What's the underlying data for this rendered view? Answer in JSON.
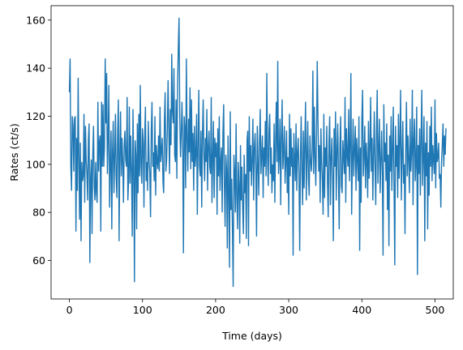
{
  "chart_data": {
    "type": "line",
    "title": "",
    "xlabel": "Time (days)",
    "ylabel": "Rates (ct/s)",
    "xlim": [
      -25,
      525
    ],
    "ylim": [
      44,
      166
    ],
    "xticks": [
      0,
      100,
      200,
      300,
      400,
      500
    ],
    "yticks": [
      60,
      80,
      100,
      120,
      140,
      160
    ],
    "grid": false,
    "color": "#1f77b4",
    "series": [
      {
        "x_start": 0,
        "x_step": 1,
        "values": [
          130,
          144,
          99,
          89,
          120,
          116,
          97,
          119,
          120,
          72,
          111,
          89,
          136,
          103,
          77,
          109,
          68,
          101,
          93,
          95,
          121,
          84,
          116,
          102,
          96,
          85,
          110,
          117,
          59,
          94,
          102,
          71,
          104,
          116,
          91,
          85,
          101,
          88,
          84,
          126,
          97,
          109,
          112,
          72,
          126,
          99,
          125,
          99,
          107,
          144,
          117,
          138,
          96,
          111,
          133,
          82,
          100,
          114,
          73,
          105,
          118,
          88,
          103,
          121,
          95,
          86,
          113,
          127,
          68,
          104,
          122,
          95,
          111,
          101,
          84,
          108,
          114,
          102,
          99,
          128,
          85,
          93,
          124,
          92,
          112,
          97,
          70,
          123,
          99,
          51,
          110,
          104,
          73,
          117,
          88,
          121,
          95,
          133,
          100,
          92,
          115,
          109,
          82,
          111,
          124,
          93,
          101,
          89,
          118,
          102,
          96,
          78,
          114,
          126,
          99,
          105,
          93,
          120,
          87,
          108,
          101,
          98,
          112,
          97,
          124,
          101,
          106,
          111,
          93,
          88,
          119,
          130,
          97,
          102,
          115,
          135,
          114,
          96,
          123,
          108,
          146,
          122,
          117,
          140,
          104,
          101,
          127,
          94,
          133,
          149,
          161,
          119,
          103,
          113,
          126,
          109,
          63,
          120,
          115,
          90,
          144,
          111,
          97,
          119,
          105,
          132,
          98,
          127,
          101,
          113,
          89,
          116,
          99,
          104,
          121,
          79,
          108,
          131,
          99,
          95,
          114,
          82,
          112,
          127,
          104,
          93,
          111,
          101,
          123,
          89,
          107,
          114,
          99,
          96,
          128,
          84,
          102,
          118,
          86,
          111,
          103,
          109,
          79,
          115,
          95,
          120,
          89,
          101,
          107,
          80,
          113,
          125,
          91,
          74,
          104,
          98,
          65,
          112,
          89,
          57,
          122,
          81,
          94,
          73,
          49,
          104,
          97,
          80,
          117,
          86,
          73,
          101,
          91,
          67,
          108,
          85,
          99,
          82,
          71,
          104,
          88,
          96,
          69,
          110,
          114,
          66,
          120,
          97,
          108,
          91,
          102,
          119,
          85,
          107,
          113,
          98,
          70,
          116,
          101,
          87,
          109,
          123,
          96,
          104,
          112,
          86,
          107,
          99,
          118,
          95,
          138,
          103,
          91,
          114,
          121,
          96,
          107,
          88,
          100,
          93,
          117,
          84,
          109,
          126,
          101,
          143,
          96,
          103,
          119,
          83,
          111,
          127,
          98,
          105,
          116,
          92,
          101,
          114,
          88,
          103,
          79,
          121,
          95,
          115,
          99,
          107,
          62,
          113,
          102,
          93,
          117,
          89,
          105,
          111,
          96,
          64,
          102,
          120,
          97,
          83,
          114,
          90,
          109,
          126,
          85,
          103,
          118,
          94,
          87,
          112,
          101,
          97,
          106,
          139,
          96,
          124,
          103,
          91,
          112,
          143,
          119,
          97,
          108,
          84,
          115,
          101,
          93,
          79,
          121,
          86,
          107,
          99,
          116,
          92,
          78,
          109,
          120,
          83,
          103,
          111,
          94,
          68,
          115,
          99,
          122,
          85,
          105,
          117,
          96,
          73,
          108,
          120,
          91,
          88,
          110,
          103,
          96,
          128,
          84,
          115,
          104,
          99,
          123,
          93,
          108,
          138,
          79,
          101,
          119,
          95,
          106,
          116,
          89,
          111,
          102,
          93,
          120,
          64,
          107,
          84,
          119,
          131,
          95,
          103,
          116,
          90,
          109,
          101,
          86,
          118,
          94,
          107,
          128,
          97,
          111,
          85,
          104,
          122,
          99,
          83,
          113,
          131,
          92,
          106,
          119,
          88,
          101,
          114,
          96,
          62,
          125,
          101,
          109,
          93,
          117,
          81,
          104,
          66,
          112,
          97,
          120,
          89,
          106,
          124,
          91,
          58,
          116,
          99,
          108,
          86,
          121,
          94,
          110,
          131,
          85,
          103,
          118,
          92,
          100,
          71,
          107,
          126,
          95,
          112,
          102,
          88,
          119,
          97,
          105,
          131,
          83,
          110,
          119,
          93,
          101,
          124,
          54,
          108,
          96,
          115,
          87,
          112,
          131,
          91,
          104,
          120,
          68,
          109,
          95,
          118,
          73,
          105,
          87,
          116,
          99,
          124,
          93,
          108,
          102,
          96,
          127,
          90,
          113,
          101,
          103,
          109,
          94,
          96,
          82,
          101,
          108,
          117,
          99,
          112,
          104,
          115
        ]
      }
    ]
  }
}
